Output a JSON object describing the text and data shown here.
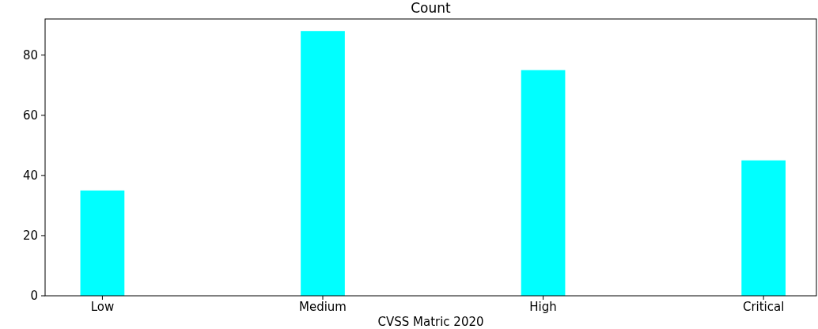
{
  "chart_data": {
    "type": "bar",
    "title": "Count",
    "xlabel": "CVSS Matric 2020",
    "categories": [
      "Low",
      "Medium",
      "High",
      "Critical"
    ],
    "values": [
      35,
      88,
      75,
      45
    ],
    "color": "#00ffff",
    "ylim": [
      0,
      92
    ],
    "yticks": [
      0,
      20,
      40,
      60,
      80
    ],
    "grid": false
  }
}
